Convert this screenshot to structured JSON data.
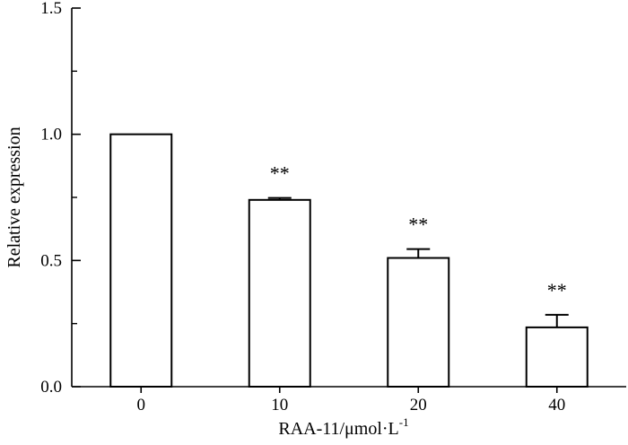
{
  "chart_data": {
    "type": "bar",
    "categories": [
      "0",
      "10",
      "20",
      "40"
    ],
    "values": [
      1.0,
      0.74,
      0.51,
      0.235
    ],
    "errors": [
      0.0,
      0.008,
      0.035,
      0.05
    ],
    "annotations": [
      "",
      "**",
      "**",
      "**"
    ],
    "xlabel": "RAA-11/μmol·L",
    "xlabel_superscript": "-1",
    "ylabel": "Relative expression",
    "ylim": [
      0,
      1.5
    ],
    "yticks": [
      0.0,
      0.5,
      1.0,
      1.5
    ],
    "ytick_labels": [
      "0.0",
      "0.5",
      "1.0",
      "1.5"
    ],
    "bar_fill": "#ffffff",
    "bar_stroke": "#000000",
    "grid": false,
    "legend": "none"
  }
}
